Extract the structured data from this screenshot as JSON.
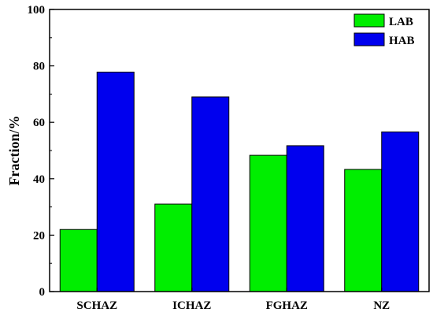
{
  "chart_data": {
    "type": "bar",
    "categories": [
      "SCHAZ",
      "ICHAZ",
      "FGHAZ",
      "NZ"
    ],
    "series": [
      {
        "name": "LAB",
        "values": [
          22,
          31,
          48.3,
          43.3
        ],
        "color": "#00ee00"
      },
      {
        "name": "HAB",
        "values": [
          77.8,
          69,
          51.7,
          56.6
        ],
        "color": "#0000ee"
      }
    ],
    "title": "",
    "xlabel": "",
    "ylabel": "Fraction/%",
    "ylim": [
      0,
      100
    ],
    "yticks": [
      "0",
      "20",
      "40",
      "60",
      "80",
      "100"
    ],
    "grid": false,
    "legend_position": "top-right"
  }
}
